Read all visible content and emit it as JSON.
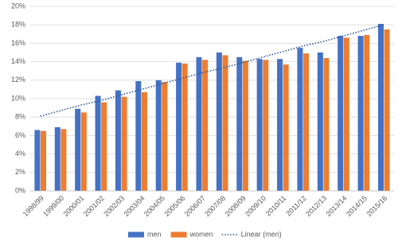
{
  "chart_data": {
    "type": "bar",
    "categories": [
      "1998/99",
      "1999/00",
      "2000/01",
      "2001/02",
      "2002/03",
      "2003/04",
      "2004/05",
      "2005/06",
      "2006/07",
      "2007/08",
      "2008/09",
      "2009/10",
      "2010/11",
      "2011/12",
      "2012/13",
      "2013/14",
      "2014/15",
      "2015/16"
    ],
    "series": [
      {
        "name": "men",
        "color": "#4472c4",
        "values": [
          6.6,
          6.9,
          8.9,
          10.3,
          10.9,
          11.9,
          12.0,
          13.9,
          14.5,
          15.0,
          14.5,
          14.3,
          14.3,
          15.5,
          15.0,
          16.8,
          16.8,
          18.1
        ]
      },
      {
        "name": "women",
        "color": "#ed7d31",
        "values": [
          6.5,
          6.7,
          8.5,
          9.6,
          10.2,
          10.7,
          11.8,
          13.8,
          14.2,
          14.7,
          14.1,
          14.2,
          13.7,
          14.9,
          14.4,
          16.6,
          16.9,
          17.5
        ]
      },
      {
        "name": "Linear (men)",
        "type": "line",
        "color": "#2f5597",
        "values": [
          8.1,
          8.7,
          9.3,
          9.8,
          10.4,
          11.0,
          11.6,
          12.2,
          12.8,
          13.3,
          13.9,
          14.5,
          15.1,
          15.7,
          16.2,
          16.8,
          17.4,
          18.0
        ]
      }
    ],
    "ylim": [
      0,
      20
    ],
    "yticks": [
      {
        "value": 0,
        "label": "0%"
      },
      {
        "value": 2,
        "label": "2%"
      },
      {
        "value": 4,
        "label": "4%"
      },
      {
        "value": 6,
        "label": "6%"
      },
      {
        "value": 8,
        "label": "8%"
      },
      {
        "value": 10,
        "label": "10%"
      },
      {
        "value": 12,
        "label": "12%"
      },
      {
        "value": 14,
        "label": "14%"
      },
      {
        "value": 16,
        "label": "16%"
      },
      {
        "value": 18,
        "label": "18%"
      },
      {
        "value": 20,
        "label": "20%"
      }
    ],
    "grid": true,
    "legend": "bottom"
  }
}
